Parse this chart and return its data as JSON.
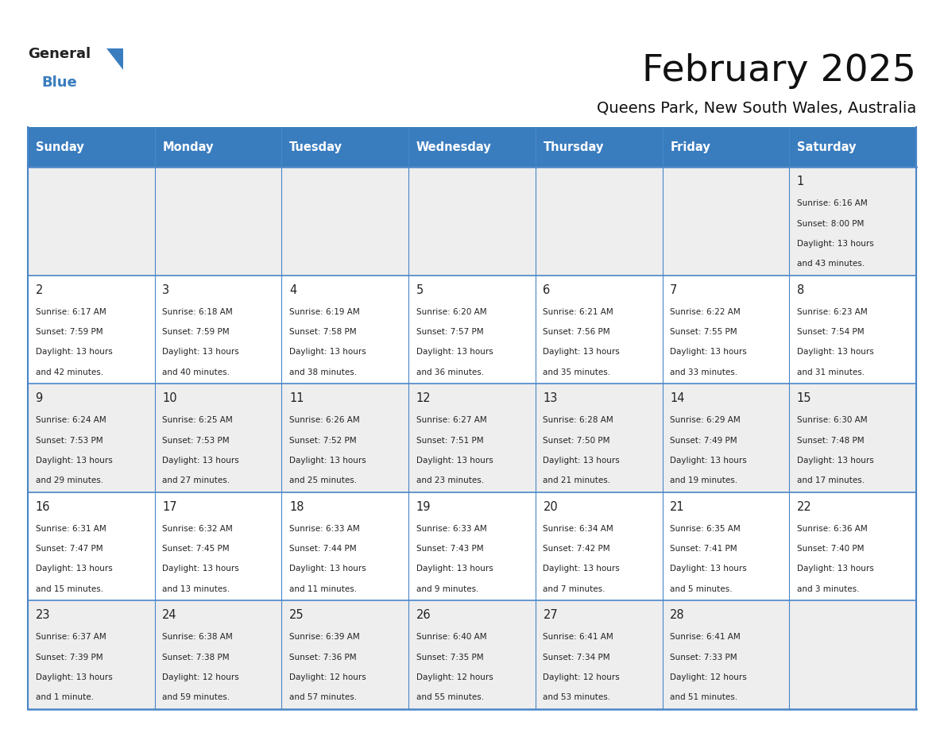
{
  "title": "February 2025",
  "subtitle": "Queens Park, New South Wales, Australia",
  "days_of_week": [
    "Sunday",
    "Monday",
    "Tuesday",
    "Wednesday",
    "Thursday",
    "Friday",
    "Saturday"
  ],
  "header_bg": "#3a7dbf",
  "header_text": "#ffffff",
  "row_bg_odd": "#eeeeee",
  "row_bg_even": "#ffffff",
  "border_color": "#4a86c8",
  "text_color": "#222222",
  "day_num_color": "#222222",
  "title_color": "#111111",
  "subtitle_color": "#111111",
  "calendar": [
    [
      null,
      null,
      null,
      null,
      null,
      null,
      {
        "day": "1",
        "sunrise": "6:16 AM",
        "sunset": "8:00 PM",
        "daylight1": "13 hours",
        "daylight2": "and 43 minutes."
      }
    ],
    [
      {
        "day": "2",
        "sunrise": "6:17 AM",
        "sunset": "7:59 PM",
        "daylight1": "13 hours",
        "daylight2": "and 42 minutes."
      },
      {
        "day": "3",
        "sunrise": "6:18 AM",
        "sunset": "7:59 PM",
        "daylight1": "13 hours",
        "daylight2": "and 40 minutes."
      },
      {
        "day": "4",
        "sunrise": "6:19 AM",
        "sunset": "7:58 PM",
        "daylight1": "13 hours",
        "daylight2": "and 38 minutes."
      },
      {
        "day": "5",
        "sunrise": "6:20 AM",
        "sunset": "7:57 PM",
        "daylight1": "13 hours",
        "daylight2": "and 36 minutes."
      },
      {
        "day": "6",
        "sunrise": "6:21 AM",
        "sunset": "7:56 PM",
        "daylight1": "13 hours",
        "daylight2": "and 35 minutes."
      },
      {
        "day": "7",
        "sunrise": "6:22 AM",
        "sunset": "7:55 PM",
        "daylight1": "13 hours",
        "daylight2": "and 33 minutes."
      },
      {
        "day": "8",
        "sunrise": "6:23 AM",
        "sunset": "7:54 PM",
        "daylight1": "13 hours",
        "daylight2": "and 31 minutes."
      }
    ],
    [
      {
        "day": "9",
        "sunrise": "6:24 AM",
        "sunset": "7:53 PM",
        "daylight1": "13 hours",
        "daylight2": "and 29 minutes."
      },
      {
        "day": "10",
        "sunrise": "6:25 AM",
        "sunset": "7:53 PM",
        "daylight1": "13 hours",
        "daylight2": "and 27 minutes."
      },
      {
        "day": "11",
        "sunrise": "6:26 AM",
        "sunset": "7:52 PM",
        "daylight1": "13 hours",
        "daylight2": "and 25 minutes."
      },
      {
        "day": "12",
        "sunrise": "6:27 AM",
        "sunset": "7:51 PM",
        "daylight1": "13 hours",
        "daylight2": "and 23 minutes."
      },
      {
        "day": "13",
        "sunrise": "6:28 AM",
        "sunset": "7:50 PM",
        "daylight1": "13 hours",
        "daylight2": "and 21 minutes."
      },
      {
        "day": "14",
        "sunrise": "6:29 AM",
        "sunset": "7:49 PM",
        "daylight1": "13 hours",
        "daylight2": "and 19 minutes."
      },
      {
        "day": "15",
        "sunrise": "6:30 AM",
        "sunset": "7:48 PM",
        "daylight1": "13 hours",
        "daylight2": "and 17 minutes."
      }
    ],
    [
      {
        "day": "16",
        "sunrise": "6:31 AM",
        "sunset": "7:47 PM",
        "daylight1": "13 hours",
        "daylight2": "and 15 minutes."
      },
      {
        "day": "17",
        "sunrise": "6:32 AM",
        "sunset": "7:45 PM",
        "daylight1": "13 hours",
        "daylight2": "and 13 minutes."
      },
      {
        "day": "18",
        "sunrise": "6:33 AM",
        "sunset": "7:44 PM",
        "daylight1": "13 hours",
        "daylight2": "and 11 minutes."
      },
      {
        "day": "19",
        "sunrise": "6:33 AM",
        "sunset": "7:43 PM",
        "daylight1": "13 hours",
        "daylight2": "and 9 minutes."
      },
      {
        "day": "20",
        "sunrise": "6:34 AM",
        "sunset": "7:42 PM",
        "daylight1": "13 hours",
        "daylight2": "and 7 minutes."
      },
      {
        "day": "21",
        "sunrise": "6:35 AM",
        "sunset": "7:41 PM",
        "daylight1": "13 hours",
        "daylight2": "and 5 minutes."
      },
      {
        "day": "22",
        "sunrise": "6:36 AM",
        "sunset": "7:40 PM",
        "daylight1": "13 hours",
        "daylight2": "and 3 minutes."
      }
    ],
    [
      {
        "day": "23",
        "sunrise": "6:37 AM",
        "sunset": "7:39 PM",
        "daylight1": "13 hours",
        "daylight2": "and 1 minute."
      },
      {
        "day": "24",
        "sunrise": "6:38 AM",
        "sunset": "7:38 PM",
        "daylight1": "12 hours",
        "daylight2": "and 59 minutes."
      },
      {
        "day": "25",
        "sunrise": "6:39 AM",
        "sunset": "7:36 PM",
        "daylight1": "12 hours",
        "daylight2": "and 57 minutes."
      },
      {
        "day": "26",
        "sunrise": "6:40 AM",
        "sunset": "7:35 PM",
        "daylight1": "12 hours",
        "daylight2": "and 55 minutes."
      },
      {
        "day": "27",
        "sunrise": "6:41 AM",
        "sunset": "7:34 PM",
        "daylight1": "12 hours",
        "daylight2": "and 53 minutes."
      },
      {
        "day": "28",
        "sunrise": "6:41 AM",
        "sunset": "7:33 PM",
        "daylight1": "12 hours",
        "daylight2": "and 51 minutes."
      },
      null
    ]
  ],
  "figsize": [
    11.88,
    9.18
  ],
  "dpi": 100
}
